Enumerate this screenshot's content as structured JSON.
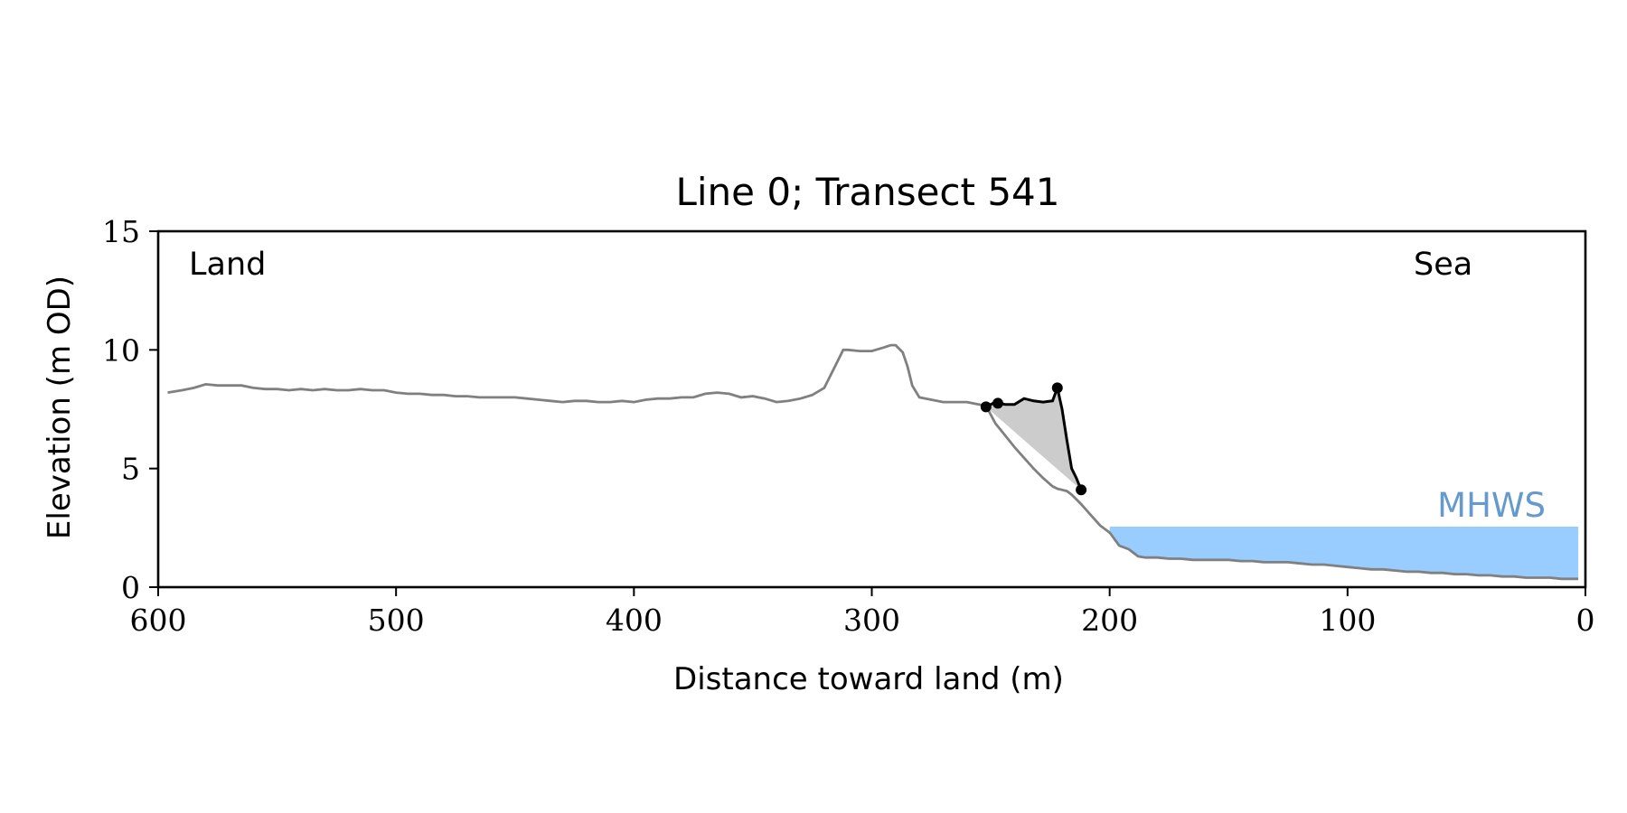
{
  "chart_data": {
    "type": "line",
    "title": "Line 0; Transect 541",
    "xlabel": "Distance toward land (m)",
    "ylabel": "Elevation (m OD)",
    "xlim": [
      600,
      0
    ],
    "ylim": [
      0,
      15
    ],
    "x_ticks": [
      600,
      500,
      400,
      300,
      200,
      100,
      0
    ],
    "y_ticks": [
      0,
      5,
      10,
      15
    ],
    "grid": false,
    "annotations": {
      "land": "Land",
      "sea": "Sea",
      "mhws": "MHWS"
    },
    "colors": {
      "profile": "#808080",
      "cliff": "#000000",
      "fill": "#cccccc",
      "mhws_fill": "#99ccff",
      "mhws_text": "#6699cc"
    },
    "mhws": {
      "elevation": 2.55,
      "x_start": 200,
      "x_end": 3
    },
    "series": [
      {
        "role": "profile",
        "x": [
          596,
          590,
          585,
          580,
          575,
          570,
          565,
          560,
          555,
          550,
          545,
          540,
          535,
          530,
          525,
          520,
          515,
          510,
          505,
          500,
          495,
          490,
          485,
          480,
          475,
          470,
          465,
          460,
          455,
          450,
          445,
          440,
          435,
          430,
          425,
          420,
          415,
          410,
          405,
          400,
          395,
          390,
          385,
          380,
          375,
          370,
          365,
          360,
          355,
          350,
          345,
          340,
          335,
          330,
          325,
          320,
          317,
          314,
          312,
          310,
          305,
          300,
          295,
          292,
          290,
          287,
          285,
          283,
          280,
          275,
          270,
          265,
          260,
          255,
          252,
          248,
          244,
          240,
          236,
          232,
          228,
          224,
          222,
          220,
          218,
          216,
          214,
          212,
          208,
          204,
          200,
          196,
          192,
          188,
          185,
          180,
          175,
          170,
          165,
          160,
          155,
          150,
          145,
          140,
          135,
          130,
          125,
          120,
          115,
          110,
          105,
          100,
          95,
          90,
          85,
          80,
          75,
          70,
          65,
          60,
          55,
          50,
          45,
          40,
          35,
          30,
          25,
          20,
          15,
          10,
          5,
          3
        ],
        "y": [
          8.2,
          8.3,
          8.4,
          8.55,
          8.5,
          8.5,
          8.5,
          8.4,
          8.35,
          8.35,
          8.3,
          8.35,
          8.3,
          8.35,
          8.3,
          8.3,
          8.35,
          8.3,
          8.3,
          8.2,
          8.15,
          8.15,
          8.1,
          8.1,
          8.05,
          8.05,
          8.0,
          8.0,
          8.0,
          8.0,
          7.95,
          7.9,
          7.85,
          7.8,
          7.85,
          7.85,
          7.8,
          7.8,
          7.85,
          7.8,
          7.9,
          7.95,
          7.95,
          8.0,
          8.0,
          8.15,
          8.2,
          8.15,
          8.0,
          8.05,
          7.95,
          7.8,
          7.85,
          7.95,
          8.1,
          8.4,
          9.0,
          9.6,
          10.0,
          10.0,
          9.95,
          9.95,
          10.1,
          10.2,
          10.2,
          9.9,
          9.3,
          8.5,
          8.0,
          7.9,
          7.8,
          7.8,
          7.8,
          7.7,
          7.65,
          6.9,
          6.4,
          5.9,
          5.45,
          5.0,
          4.6,
          4.25,
          4.15,
          4.1,
          4.05,
          3.9,
          3.7,
          3.5,
          3.05,
          2.6,
          2.3,
          1.75,
          1.6,
          1.3,
          1.25,
          1.25,
          1.2,
          1.2,
          1.15,
          1.15,
          1.15,
          1.15,
          1.1,
          1.1,
          1.05,
          1.05,
          1.05,
          1.0,
          0.95,
          0.95,
          0.9,
          0.85,
          0.8,
          0.75,
          0.75,
          0.7,
          0.65,
          0.65,
          0.6,
          0.6,
          0.55,
          0.55,
          0.5,
          0.5,
          0.45,
          0.45,
          0.4,
          0.4,
          0.4,
          0.35,
          0.35,
          0.35
        ]
      },
      {
        "role": "cliff",
        "x": [
          252,
          248,
          244,
          240,
          236,
          232,
          228,
          224,
          222,
          220,
          218,
          216,
          214,
          212
        ],
        "y": [
          7.6,
          7.8,
          7.7,
          7.7,
          7.95,
          7.85,
          7.8,
          7.85,
          8.4,
          7.5,
          6.2,
          5.0,
          4.6,
          4.1
        ]
      }
    ],
    "markers": [
      {
        "x": 252,
        "y": 7.6
      },
      {
        "x": 247,
        "y": 7.75
      },
      {
        "x": 222,
        "y": 8.4
      },
      {
        "x": 212,
        "y": 4.1
      }
    ]
  }
}
